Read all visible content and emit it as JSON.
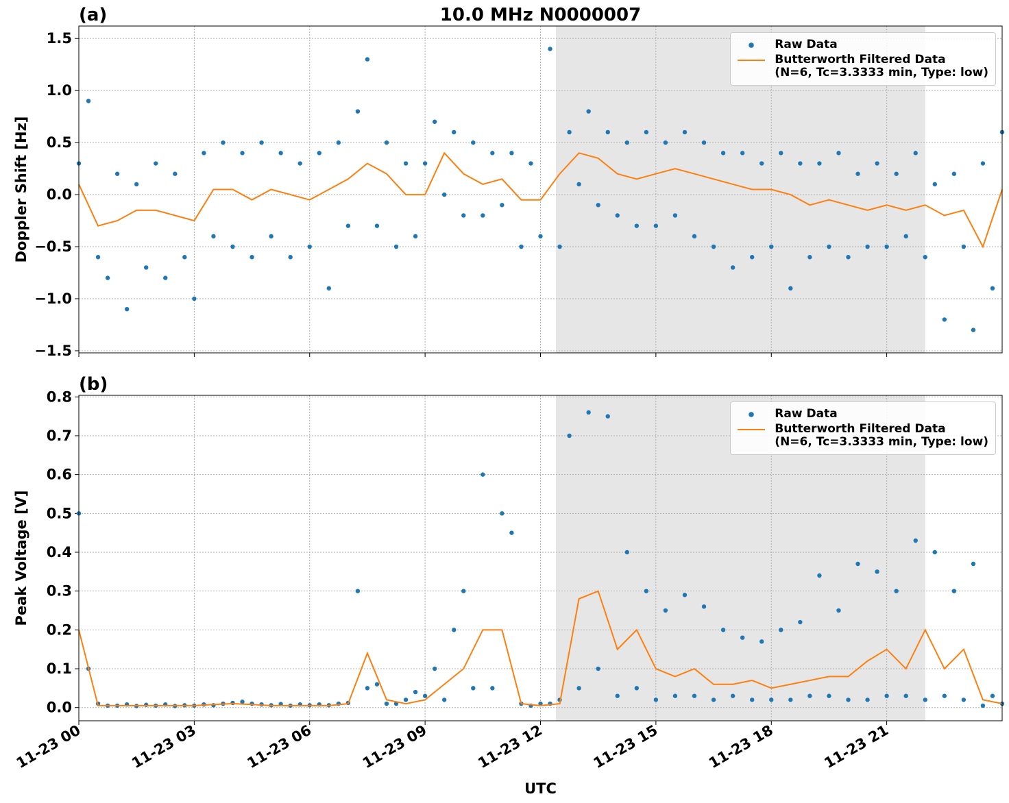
{
  "chart_data": [
    {
      "type": "line",
      "title": "10.0 MHz N0000007",
      "panel_label": "(a)",
      "y_label": "Doppler Shift [Hz]",
      "xlim": [
        0,
        24
      ],
      "xticks": [
        0,
        3,
        6,
        9,
        12,
        15,
        18,
        21
      ],
      "ylim": [
        -1.52,
        1.62
      ],
      "yticks": [
        {
          "value": -1.5,
          "label": "−1.5"
        },
        {
          "value": -1.0,
          "label": "−1.0"
        },
        {
          "value": -0.5,
          "label": "−0.5"
        },
        {
          "value": 0,
          "label": "0.0"
        },
        {
          "value": 0.5,
          "label": "0.5"
        },
        {
          "value": 1.0,
          "label": "1.0"
        },
        {
          "value": 1.5,
          "label": "1.5"
        }
      ],
      "grid": true,
      "legend": "upper right",
      "shaded_span": [
        12.4,
        22.0
      ],
      "series": [
        {
          "name": "Raw Data",
          "mode": "markers",
          "color": "#1f77b4",
          "x": [
            0,
            0.25,
            0.5,
            0.75,
            1,
            1.25,
            1.5,
            1.75,
            2,
            2.25,
            2.5,
            2.75,
            3,
            3.25,
            3.5,
            3.75,
            4,
            4.25,
            4.5,
            4.75,
            5,
            5.25,
            5.5,
            5.75,
            6,
            6.25,
            6.5,
            6.75,
            7,
            7.25,
            7.5,
            7.75,
            8,
            8.25,
            8.5,
            8.75,
            9,
            9.25,
            9.5,
            9.75,
            10,
            10.25,
            10.5,
            10.75,
            11,
            11.25,
            11.5,
            11.75,
            12,
            12.25,
            12.5,
            12.75,
            13,
            13.25,
            13.5,
            13.75,
            14,
            14.25,
            14.5,
            14.75,
            15,
            15.25,
            15.5,
            15.75,
            16,
            16.25,
            16.5,
            16.75,
            17,
            17.25,
            17.5,
            17.75,
            18,
            18.25,
            18.5,
            18.75,
            19,
            19.25,
            19.5,
            19.75,
            20,
            20.25,
            20.5,
            20.75,
            21,
            21.25,
            21.5,
            21.75,
            22,
            22.25,
            22.5,
            22.75,
            23,
            23.25,
            23.5,
            23.75,
            24
          ],
          "values": [
            0.3,
            0.9,
            -0.6,
            -0.8,
            0.2,
            -1.1,
            0.1,
            -0.7,
            0.3,
            -0.8,
            0.2,
            -0.6,
            -1.0,
            0.4,
            -0.4,
            0.5,
            -0.5,
            0.4,
            -0.6,
            0.5,
            -0.4,
            0.4,
            -0.6,
            0.3,
            -0.5,
            0.4,
            -0.9,
            0.5,
            -0.3,
            0.8,
            1.3,
            -0.3,
            0.5,
            -0.5,
            0.3,
            -0.4,
            0.3,
            0.7,
            0.0,
            0.6,
            -0.2,
            0.5,
            -0.2,
            0.4,
            -0.1,
            0.4,
            -0.5,
            0.3,
            -0.4,
            1.4,
            -0.5,
            0.6,
            0.1,
            0.8,
            -0.1,
            0.6,
            -0.2,
            0.5,
            -0.3,
            0.6,
            -0.3,
            0.5,
            -0.2,
            0.6,
            -0.4,
            0.5,
            -0.5,
            0.4,
            -0.7,
            0.4,
            -0.6,
            0.3,
            -0.5,
            0.4,
            -0.9,
            0.3,
            -0.6,
            0.3,
            -0.5,
            0.4,
            -0.6,
            0.2,
            -0.5,
            0.3,
            -0.5,
            0.2,
            -0.4,
            0.4,
            -0.6,
            0.1,
            -1.2,
            0.2,
            -0.5,
            -1.3,
            0.3,
            -0.9,
            0.6
          ]
        },
        {
          "name": "Butterworth Filtered Data\n(N=6, Tc=3.3333 min, Type: low)",
          "mode": "lines",
          "color": "#ff7f0e",
          "x": [
            0,
            0.5,
            1,
            1.5,
            2,
            2.5,
            3,
            3.5,
            4,
            4.5,
            5,
            5.5,
            6,
            6.5,
            7,
            7.5,
            8,
            8.5,
            9,
            9.5,
            10,
            10.5,
            11,
            11.5,
            12,
            12.5,
            13,
            13.5,
            14,
            14.5,
            15,
            15.5,
            16,
            16.5,
            17,
            17.5,
            18,
            18.5,
            19,
            19.5,
            20,
            20.5,
            21,
            21.5,
            22,
            22.5,
            23,
            23.5,
            24
          ],
          "values": [
            0.1,
            -0.3,
            -0.25,
            -0.15,
            -0.15,
            -0.2,
            -0.25,
            0.05,
            0.05,
            -0.05,
            0.05,
            0,
            -0.05,
            0.05,
            0.15,
            0.3,
            0.2,
            0.0,
            0.0,
            0.4,
            0.2,
            0.1,
            0.15,
            -0.05,
            -0.05,
            0.2,
            0.4,
            0.35,
            0.2,
            0.15,
            0.2,
            0.25,
            0.2,
            0.15,
            0.1,
            0.05,
            0.05,
            0.0,
            -0.1,
            -0.05,
            -0.1,
            -0.15,
            -0.1,
            -0.15,
            -0.1,
            -0.2,
            -0.15,
            -0.5,
            0.05
          ]
        }
      ]
    },
    {
      "type": "line",
      "panel_label": "(b)",
      "y_label": "Peak Voltage [V]",
      "x_label": "UTC",
      "xlim": [
        0,
        24
      ],
      "xticks": [
        {
          "value": 0,
          "label": "11-23 00"
        },
        {
          "value": 3,
          "label": "11-23 03"
        },
        {
          "value": 6,
          "label": "11-23 06"
        },
        {
          "value": 9,
          "label": "11-23 09"
        },
        {
          "value": 12,
          "label": "11-23 12"
        },
        {
          "value": 15,
          "label": "11-23 15"
        },
        {
          "value": 18,
          "label": "11-23 18"
        },
        {
          "value": 21,
          "label": "11-23 21"
        }
      ],
      "ylim": [
        -0.034,
        0.804
      ],
      "yticks": [
        {
          "value": 0,
          "label": "0.0"
        },
        0.1,
        0.2,
        0.3,
        0.4,
        0.5,
        0.6,
        0.7,
        0.8
      ],
      "grid": true,
      "legend": "upper right",
      "shaded_span": [
        12.4,
        22.0
      ],
      "series": [
        {
          "name": "Raw Data",
          "mode": "markers",
          "color": "#1f77b4",
          "x": [
            0,
            0.25,
            0.5,
            0.75,
            1,
            1.25,
            1.5,
            1.75,
            2,
            2.25,
            2.5,
            2.75,
            3,
            3.25,
            3.5,
            3.75,
            4,
            4.25,
            4.5,
            4.75,
            5,
            5.25,
            5.5,
            5.75,
            6,
            6.25,
            6.5,
            6.75,
            7,
            7.25,
            7.5,
            7.75,
            8,
            8.25,
            8.5,
            8.75,
            9,
            9.25,
            9.5,
            9.75,
            10,
            10.25,
            10.5,
            10.75,
            11,
            11.25,
            11.5,
            11.75,
            12,
            12.25,
            12.5,
            12.75,
            13,
            13.25,
            13.5,
            13.75,
            14,
            14.25,
            14.5,
            14.75,
            15,
            15.25,
            15.5,
            15.75,
            16,
            16.25,
            16.5,
            16.75,
            17,
            17.25,
            17.5,
            17.75,
            18,
            18.25,
            18.5,
            18.75,
            19,
            19.25,
            19.5,
            19.75,
            20,
            20.25,
            20.5,
            20.75,
            21,
            21.25,
            21.5,
            21.75,
            22,
            22.25,
            22.5,
            22.75,
            23,
            23.25,
            23.5,
            23.75,
            24
          ],
          "values": [
            0.5,
            0.1,
            0.01,
            0.005,
            0.005,
            0.008,
            0.004,
            0.007,
            0.005,
            0.008,
            0.004,
            0.006,
            0.005,
            0.008,
            0.006,
            0.01,
            0.012,
            0.015,
            0.01,
            0.008,
            0.006,
            0.009,
            0.005,
            0.008,
            0.006,
            0.008,
            0.006,
            0.01,
            0.012,
            0.3,
            0.05,
            0.06,
            0.01,
            0.01,
            0.02,
            0.04,
            0.03,
            0.1,
            0.02,
            0.2,
            0.3,
            0.05,
            0.6,
            0.05,
            0.5,
            0.45,
            0.01,
            0.005,
            0.01,
            0.01,
            0.02,
            0.7,
            0.05,
            0.76,
            0.1,
            0.75,
            0.03,
            0.4,
            0.05,
            0.3,
            0.02,
            0.25,
            0.03,
            0.29,
            0.03,
            0.26,
            0.02,
            0.2,
            0.03,
            0.18,
            0.02,
            0.17,
            0.02,
            0.2,
            0.02,
            0.22,
            0.03,
            0.34,
            0.03,
            0.25,
            0.02,
            0.37,
            0.02,
            0.35,
            0.03,
            0.3,
            0.03,
            0.43,
            0.02,
            0.4,
            0.03,
            0.3,
            0.02,
            0.37,
            0.005,
            0.03,
            0.01
          ]
        },
        {
          "name": "Butterworth Filtered Data\n(N=6, Tc=3.3333 min, Type: low)",
          "mode": "lines",
          "color": "#ff7f0e",
          "x": [
            0,
            0.5,
            1,
            1.5,
            2,
            2.5,
            3,
            3.5,
            4,
            4.5,
            5,
            5.5,
            6,
            6.5,
            7,
            7.5,
            8,
            8.5,
            9,
            9.5,
            10,
            10.5,
            11,
            11.5,
            12,
            12.5,
            13,
            13.5,
            14,
            14.5,
            15,
            15.5,
            16,
            16.5,
            17,
            17.5,
            18,
            18.5,
            19,
            19.5,
            20,
            20.5,
            21,
            21.5,
            22,
            22.5,
            23,
            23.5,
            24
          ],
          "values": [
            0.2,
            0.005,
            0.005,
            0.005,
            0.005,
            0.005,
            0.005,
            0.008,
            0.01,
            0.008,
            0.005,
            0.005,
            0.005,
            0.005,
            0.01,
            0.14,
            0.02,
            0.01,
            0.02,
            0.06,
            0.1,
            0.2,
            0.2,
            0.01,
            0.005,
            0.01,
            0.28,
            0.3,
            0.15,
            0.2,
            0.1,
            0.08,
            0.1,
            0.06,
            0.06,
            0.07,
            0.05,
            0.06,
            0.07,
            0.08,
            0.08,
            0.12,
            0.15,
            0.1,
            0.2,
            0.1,
            0.15,
            0.02,
            0.01
          ]
        }
      ]
    }
  ]
}
